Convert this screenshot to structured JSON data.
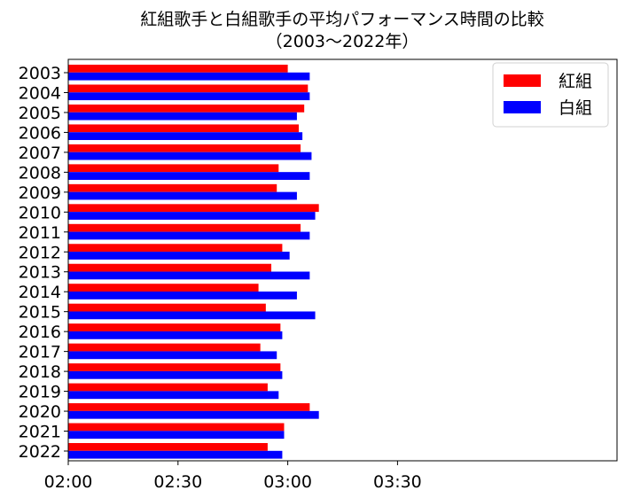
{
  "chart_data": {
    "type": "bar",
    "orientation": "horizontal",
    "title": "紅組歌手と白組歌手の平均パフォーマンス時間の比較\n（2003〜2022年）",
    "categories": [
      "2003",
      "2004",
      "2005",
      "2006",
      "2007",
      "2008",
      "2009",
      "2010",
      "2011",
      "2012",
      "2013",
      "2014",
      "2015",
      "2016",
      "2017",
      "2018",
      "2019",
      "2020",
      "2021",
      "2022"
    ],
    "series": [
      {
        "name": "紅組",
        "color": "#ff0000",
        "values": [
          180,
          185.5,
          184.5,
          183,
          183.5,
          177.5,
          177,
          188.5,
          183.5,
          178.5,
          175.5,
          172,
          174,
          178,
          172.5,
          178,
          174.5,
          186,
          179,
          174.5
        ]
      },
      {
        "name": "白組",
        "color": "#0000ff",
        "values": [
          186,
          186,
          182.5,
          184,
          186.5,
          186,
          182.5,
          187.5,
          186,
          180.5,
          186,
          182.5,
          187.5,
          178.5,
          177,
          178.5,
          177.5,
          188.5,
          179,
          178.5
        ]
      }
    ],
    "x_unit": "minutes",
    "xlim": [
      120,
      270
    ],
    "xticks": [
      120,
      150,
      180,
      210
    ],
    "xtick_labels": [
      "02:00",
      "02:30",
      "03:00",
      "03:30"
    ],
    "legend_position": "top-right",
    "grid": false
  }
}
